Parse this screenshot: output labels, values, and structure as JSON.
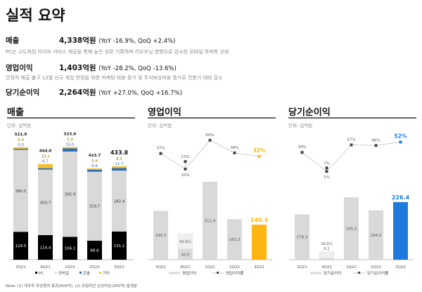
{
  "title": "실적 요약",
  "summary": [
    {
      "label": "매출",
      "value": "4,338억원",
      "change": "(YoY -16.9%, QoQ +2.4%)",
      "desc": "PC는 고도화된 라이브 서비스 제공을 통해 높은 성장 기록하며 리오프닝 영향으로 감소한 모바일 하락폭 상쇄"
    },
    {
      "label": "영업이익",
      "value": "1,403억원",
      "change": "(YoY -28.2%, QoQ -13.6%)",
      "desc": "안정적 매출 불구 12월 신규 게임 런칭을 위한 마케팅 비용 증가 및 주식보상비용 증가로 전분기 대비 감소"
    },
    {
      "label": "당기순이익",
      "value": "2,264억원",
      "change": "(YoY +27.0%, QoQ +16.7%)",
      "desc": ""
    }
  ],
  "unit": "단위: 십억원",
  "note": "Note: (1) 대주주 무상증여 효과(609억), (2) 유형자산 손상차손(265억) 발생분",
  "chart_data": [
    {
      "type": "bar",
      "stacked": true,
      "title": "매출",
      "categories": [
        "3Q21",
        "4Q21",
        "1Q22",
        "2Q22",
        "3Q22"
      ],
      "series": [
        {
          "name": "PC",
          "color": "#000000",
          "values": [
            129.5,
            114.4,
            106.1,
            88.6,
            131.1
          ]
        },
        {
          "name": "모바일",
          "color": "#d9d9d9",
          "values": [
            380.5,
            303.7,
            395.9,
            319.7,
            282.4
          ]
        },
        {
          "name": "콘솔",
          "color": "#2f6db5",
          "values": [
            5.0,
            6.7,
            15.0,
            9.6,
            11.7
          ]
        },
        {
          "name": "기타",
          "color": "#f2c12e",
          "values": [
            6.9,
            19.3,
            5.9,
            5.8,
            8.5
          ]
        }
      ],
      "totals": [
        "521.9",
        "444.0",
        "523.0",
        "423.7",
        "433.8"
      ]
    },
    {
      "type": "bar+line",
      "title": "영업이익",
      "categories": [
        "3Q21",
        "4Q21",
        "1Q22",
        "2Q22",
        "3Q22"
      ],
      "bar": {
        "name": "영업이익",
        "values": [
          195.3,
          43.0,
          311.9,
          162.3,
          140.3
        ],
        "labels": [
          "195.3",
          "43.0",
          "311.9",
          "162.3",
          "140.3"
        ],
        "adjustment": {
          "category": "4Q21",
          "value": 60.9,
          "label": "60.9⑴"
        }
      },
      "line": {
        "name": "영업이익률",
        "values": [
          37,
          10,
          60,
          38,
          32
        ],
        "adjusted": {
          "category": "4Q21",
          "value": 23
        }
      },
      "highlight_color": "#ffb612"
    },
    {
      "type": "bar+line",
      "title": "당기순이익",
      "categories": [
        "3Q21",
        "4Q21",
        "1Q22",
        "2Q22",
        "3Q22"
      ],
      "bar": {
        "name": "당기순이익",
        "values": [
          178.3,
          6.2,
          245.2,
          194.0,
          226.4
        ],
        "labels": [
          "178.3",
          "6.2",
          "245.2",
          "194.0",
          "226.4"
        ],
        "adjustment": {
          "category": "4Q21",
          "value": 26.5,
          "label": "26.5⑵"
        }
      },
      "line": {
        "name": "당기순이익률",
        "values": [
          34,
          1,
          47,
          46,
          52
        ],
        "adjusted": {
          "category": "4Q21",
          "value": 7
        }
      },
      "highlight_color": "#1f7ae0"
    }
  ]
}
